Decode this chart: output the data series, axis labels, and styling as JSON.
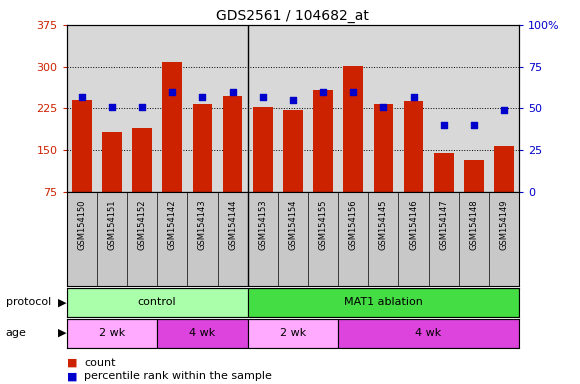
{
  "title": "GDS2561 / 104682_at",
  "samples": [
    "GSM154150",
    "GSM154151",
    "GSM154152",
    "GSM154142",
    "GSM154143",
    "GSM154144",
    "GSM154153",
    "GSM154154",
    "GSM154155",
    "GSM154156",
    "GSM154145",
    "GSM154146",
    "GSM154147",
    "GSM154148",
    "GSM154149"
  ],
  "counts": [
    240,
    183,
    190,
    308,
    233,
    248,
    228,
    222,
    258,
    302,
    233,
    238,
    145,
    133,
    158
  ],
  "percentiles": [
    57,
    51,
    51,
    60,
    57,
    60,
    57,
    55,
    60,
    60,
    51,
    57,
    40,
    40,
    49
  ],
  "ylim_left": [
    75,
    375
  ],
  "ylim_right": [
    0,
    100
  ],
  "yticks_left": [
    75,
    150,
    225,
    300,
    375
  ],
  "yticks_right": [
    0,
    25,
    50,
    75,
    100
  ],
  "bar_color": "#cc2200",
  "dot_color": "#0000cc",
  "plot_bg": "#d8d8d8",
  "label_bg": "#c8c8c8",
  "protocol_groups": [
    {
      "label": "control",
      "start": 0,
      "end": 6,
      "color": "#aaffaa"
    },
    {
      "label": "MAT1 ablation",
      "start": 6,
      "end": 15,
      "color": "#44dd44"
    }
  ],
  "age_groups": [
    {
      "label": "2 wk",
      "start": 0,
      "end": 3,
      "color": "#ffaaff"
    },
    {
      "label": "4 wk",
      "start": 3,
      "end": 6,
      "color": "#dd44dd"
    },
    {
      "label": "2 wk",
      "start": 6,
      "end": 9,
      "color": "#ffaaff"
    },
    {
      "label": "4 wk",
      "start": 9,
      "end": 15,
      "color": "#dd44dd"
    }
  ]
}
